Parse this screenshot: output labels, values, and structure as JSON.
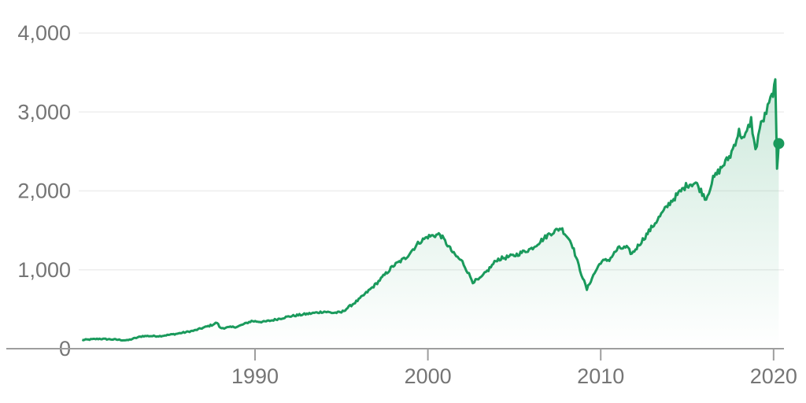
{
  "colors": {
    "line": "#1a9a5c",
    "grid": "#eeeeee",
    "axis": "#9e9e9e",
    "tick_text": "#757575"
  },
  "chart_data": {
    "type": "area",
    "title": "",
    "xlabel": "",
    "ylabel": "",
    "xlim": [
      1979.8,
      2020.6
    ],
    "ylim": [
      0,
      4000
    ],
    "y_ticks": [
      0,
      1000,
      2000,
      3000,
      4000
    ],
    "y_tick_labels": [
      "0",
      "1,000",
      "2,000",
      "3,000",
      "4,000"
    ],
    "x_ticks": [
      1990,
      2000,
      2010,
      2020
    ],
    "x_tick_labels": [
      "1990",
      "2000",
      "2010",
      "2020"
    ],
    "grid": "horizontal",
    "legend": "none",
    "series": [
      {
        "x": [
          1980.0,
          1981.0,
          1982.0,
          1982.6,
          1983.5,
          1984.5,
          1985.5,
          1986.5,
          1987.5,
          1987.8,
          1988.0,
          1989.0,
          1989.8,
          1990.5,
          1991.0,
          1992.0,
          1993.0,
          1994.0,
          1994.5,
          1995.0,
          1996.0,
          1997.0,
          1998.0,
          1998.7,
          1999.5,
          2000.0,
          2000.7,
          2001.5,
          2002.0,
          2002.6,
          2003.0,
          2003.5,
          2004.0,
          2005.0,
          2006.0,
          2007.0,
          2007.7,
          2008.3,
          2008.8,
          2009.2,
          2009.5,
          2010.0,
          2010.5,
          2011.0,
          2011.5,
          2011.8,
          2012.5,
          2013.0,
          2014.0,
          2015.0,
          2015.5,
          2016.1,
          2016.5,
          2017.0,
          2017.5,
          2018.0,
          2018.3,
          2018.7,
          2018.95,
          2019.2,
          2019.5,
          2019.9,
          2020.1,
          2020.2,
          2020.3
        ],
        "values": [
          110,
          125,
          115,
          105,
          160,
          160,
          190,
          230,
          300,
          330,
          260,
          280,
          350,
          340,
          360,
          410,
          440,
          470,
          455,
          460,
          620,
          820,
          1050,
          1150,
          1350,
          1420,
          1450,
          1200,
          1100,
          850,
          880,
          1000,
          1130,
          1180,
          1270,
          1450,
          1530,
          1350,
          1000,
          750,
          900,
          1100,
          1130,
          1270,
          1280,
          1200,
          1400,
          1550,
          1850,
          2080,
          2100,
          1900,
          2150,
          2300,
          2450,
          2750,
          2650,
          2900,
          2500,
          2800,
          2950,
          3200,
          3350,
          2300,
          2600
        ]
      }
    ],
    "annotations": [
      {
        "type": "marker",
        "x": 2020.3,
        "y": 2600
      }
    ]
  }
}
